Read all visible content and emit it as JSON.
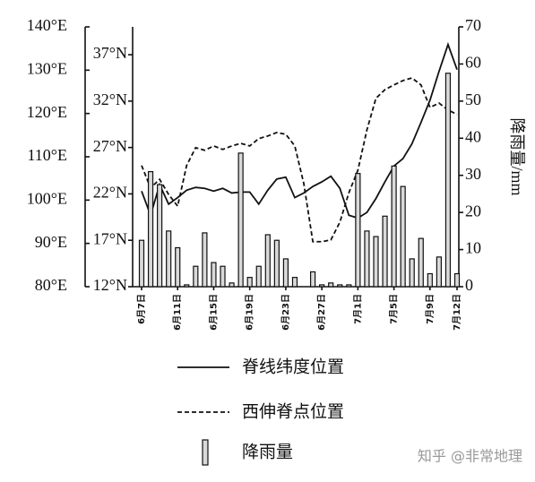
{
  "chart_data": {
    "type": "combo",
    "categories": [
      "6月7日",
      null,
      null,
      null,
      "6月11日",
      null,
      null,
      null,
      "6月15日",
      null,
      null,
      null,
      "6月19日",
      null,
      null,
      null,
      "6月23日",
      null,
      null,
      null,
      "6月27日",
      null,
      null,
      null,
      "7月1日",
      null,
      null,
      null,
      "7月5日",
      null,
      null,
      null,
      "7月9日",
      null,
      null,
      "7月12日"
    ],
    "ylim": [
      80,
      140
    ],
    "yticks": [
      {
        "value": 80,
        "label": "80°E"
      },
      {
        "value": 90,
        "label": "90°E"
      },
      {
        "value": 100,
        "label": "100°E"
      },
      {
        "value": 110,
        "label": "110°E"
      },
      {
        "value": 120,
        "label": "120°E"
      },
      {
        "value": 130,
        "label": "130°E"
      },
      {
        "value": 140,
        "label": "140°E"
      }
    ],
    "y2lim": [
      12,
      40
    ],
    "y2ticks": [
      {
        "value": 12,
        "label": "12°N"
      },
      {
        "value": 17,
        "label": "17°N"
      },
      {
        "value": 22,
        "label": "22°N"
      },
      {
        "value": 27,
        "label": "27°N"
      },
      {
        "value": 32,
        "label": "32°N"
      },
      {
        "value": 37,
        "label": "37°N"
      }
    ],
    "y3lim": [
      0,
      70
    ],
    "y3ticks": [
      0,
      10,
      20,
      30,
      40,
      50,
      60,
      70
    ],
    "y3label": "降雨量/mm",
    "series": [
      {
        "name": "脊线纬度位置",
        "type": "line",
        "line_style": "solid",
        "color": "#111111",
        "axis": "y2",
        "values": [
          22.3,
          19.7,
          23,
          20.9,
          21.6,
          22.4,
          22.7,
          22.6,
          22.3,
          22.6,
          22.1,
          22.2,
          22.2,
          20.9,
          22.4,
          23.6,
          23.8,
          21.6,
          22.1,
          22.8,
          23.3,
          23.9,
          22.6,
          19.7,
          19.4,
          20,
          21.5,
          23.3,
          25,
          25.8,
          27.4,
          29.7,
          32.1,
          35.2,
          38.1,
          35.4
        ]
      },
      {
        "name": "西伸脊点位置",
        "type": "line",
        "line_style": "dashed",
        "color": "#111111",
        "axis": "y",
        "values": [
          108,
          102.8,
          104.8,
          101.3,
          98.6,
          108,
          112.1,
          111.5,
          112.5,
          111.7,
          112.5,
          113.1,
          112.5,
          114.2,
          114.8,
          115.6,
          115.2,
          112.5,
          103.8,
          90.4,
          90.4,
          90.8,
          94.9,
          101.7,
          106.9,
          116.2,
          123.5,
          125.5,
          126.6,
          127.6,
          128.2,
          126.6,
          121.4,
          122.4,
          120.8,
          119.8
        ]
      },
      {
        "name": "降雨量",
        "type": "bar",
        "color": "#d9d9d9",
        "axis": "y3",
        "values": [
          12.5,
          31,
          27.5,
          15,
          10.5,
          0.5,
          5.5,
          14.5,
          6.5,
          5.5,
          1,
          36,
          2.5,
          5.5,
          14,
          12.5,
          7.5,
          2.5,
          0,
          4,
          0.5,
          1,
          0.5,
          0.5,
          30.5,
          15,
          13.5,
          19,
          32.5,
          27,
          7.5,
          13,
          3.5,
          8,
          57.5,
          3.5
        ]
      }
    ],
    "watermark": "知乎 @非常地理"
  }
}
